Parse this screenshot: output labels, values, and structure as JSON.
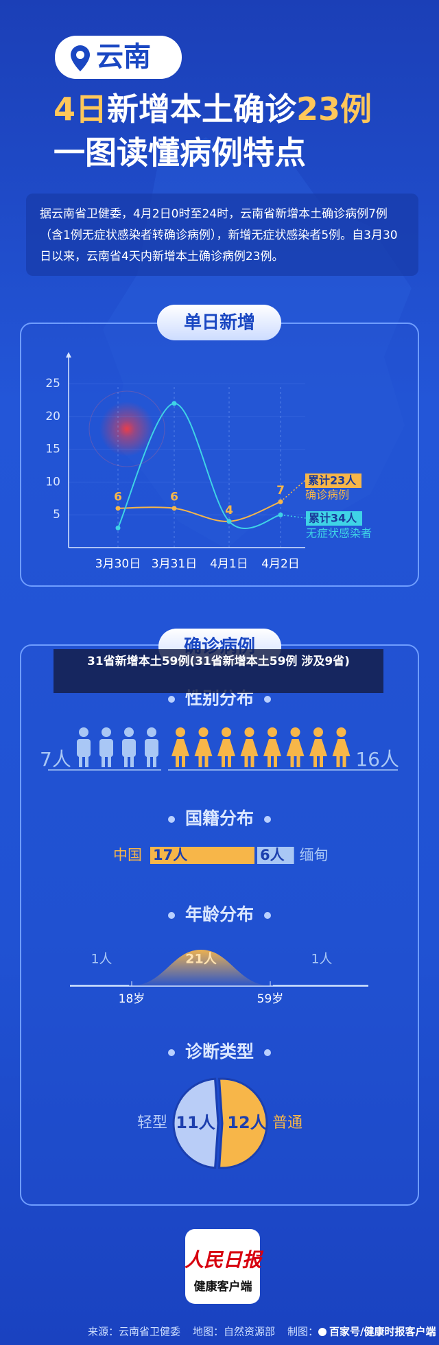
{
  "header": {
    "location": "云南",
    "title_parts": [
      "4日",
      "新增本土确诊",
      "23例"
    ],
    "subtitle": "一图读懂病例特点"
  },
  "intro": "据云南省卫健委，4月2日0时至24时，云南省新增本土确诊病例7例（含1例无症状感染者转确诊病例），新增无症状感染者5例。自3月30日以来，云南省4天内新增本土确诊病例23例。",
  "daily": {
    "title": "单日新增"
  },
  "chart_data": {
    "type": "line",
    "categories": [
      "3月30日",
      "3月31日",
      "4月1日",
      "4月2日"
    ],
    "series": [
      {
        "name": "确诊病例",
        "color": "#f7b649",
        "values": [
          6,
          6,
          4,
          7
        ],
        "total_label": "累计23人"
      },
      {
        "name": "无症状感染者",
        "color": "#3fd3e6",
        "values": [
          3,
          22,
          4,
          5
        ],
        "total_label": "累计34人"
      }
    ],
    "ylim": [
      0,
      29
    ],
    "yticks": [
      5,
      10,
      15,
      20,
      25
    ],
    "grid": true
  },
  "overlay_caption": "31省新增本土59例(31省新增本土59例 涉及9省)",
  "cases": {
    "title": "确诊病例",
    "gender": {
      "title": "性别分布",
      "male": {
        "value": 7,
        "label": "7人",
        "color": "#a9c7f5"
      },
      "female": {
        "value": 16,
        "label": "16人",
        "color": "#f7b649"
      }
    },
    "nationality": {
      "title": "国籍分布",
      "items": [
        {
          "name": "中国",
          "value": 17,
          "label": "17人",
          "color": "#f7b649"
        },
        {
          "name": "缅甸",
          "value": 6,
          "label": "6人",
          "color": "#a9c7f5"
        }
      ]
    },
    "age": {
      "title": "年龄分布",
      "bounds": [
        "18岁",
        "59岁"
      ],
      "groups": [
        {
          "value": 1,
          "label": "1人"
        },
        {
          "value": 21,
          "label": "21人"
        },
        {
          "value": 1,
          "label": "1人"
        }
      ]
    },
    "diagnosis": {
      "title": "诊断类型",
      "items": [
        {
          "name": "轻型",
          "value": 11,
          "label": "11人",
          "color": "#b9cdf7"
        },
        {
          "name": "普通",
          "value": 12,
          "label": "12人",
          "color": "#f7b649"
        }
      ]
    }
  },
  "footer": {
    "logo": "人民日报",
    "logo_sub": "健康客户端",
    "source": [
      "来源：云南省卫健委",
      "地图：自然资源部",
      "制图："
    ],
    "watermark": "百家号/健康时报客户端"
  }
}
